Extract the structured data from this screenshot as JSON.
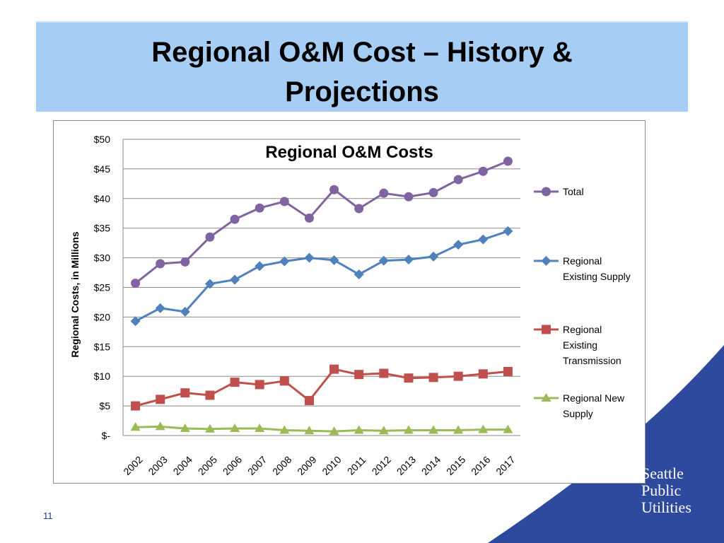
{
  "slide": {
    "title_line1": "Regional O&M Cost – History &",
    "title_line2": "Projections",
    "page_number": "11"
  },
  "logo": {
    "line1": "Seattle",
    "line2": "Public",
    "line3": "Utilities"
  },
  "colors": {
    "title_band": "#a6cef5",
    "swoosh": "#2e4a9e",
    "total": "#8064a2",
    "existing_supply": "#4f81bd",
    "existing_transmission": "#c0504d",
    "new_supply": "#9bbb59"
  },
  "chart_data": {
    "type": "line",
    "title": "Regional O&M Costs",
    "ylabel": "Regional Costs, in Millions",
    "xlabel": "",
    "ylim": [
      0,
      50
    ],
    "y_ticks": [
      0,
      5,
      10,
      15,
      20,
      25,
      30,
      35,
      40,
      45,
      50
    ],
    "y_tick_labels": [
      "$-",
      "$5",
      "$10",
      "$15",
      "$20",
      "$25",
      "$30",
      "$35",
      "$40",
      "$45",
      "$50"
    ],
    "grid": true,
    "legend_position": "right",
    "categories": [
      "2002",
      "2003",
      "2004",
      "2005",
      "2006",
      "2007",
      "2008",
      "2009",
      "2010",
      "2011",
      "2012",
      "2013",
      "2014",
      "2015",
      "2016",
      "2017"
    ],
    "series": [
      {
        "name": "Total",
        "legend_lines": [
          "Total"
        ],
        "color": "#8064a2",
        "marker": "circle",
        "values": [
          25.7,
          29.0,
          29.3,
          33.5,
          36.5,
          38.4,
          39.5,
          36.7,
          41.5,
          38.3,
          40.9,
          40.3,
          41.0,
          43.2,
          44.6,
          46.3
        ]
      },
      {
        "name": "Regional Existing Supply",
        "legend_lines": [
          "Regional",
          "Existing Supply"
        ],
        "color": "#4f81bd",
        "marker": "diamond",
        "values": [
          19.3,
          21.5,
          20.9,
          25.6,
          26.3,
          28.6,
          29.4,
          30.0,
          29.6,
          27.2,
          29.5,
          29.7,
          30.2,
          32.2,
          33.1,
          34.5
        ]
      },
      {
        "name": "Regional Existing Transmission",
        "legend_lines": [
          "Regional",
          "Existing",
          "Transmission"
        ],
        "color": "#c0504d",
        "marker": "square",
        "values": [
          5.0,
          6.1,
          7.2,
          6.8,
          9.0,
          8.6,
          9.2,
          5.9,
          11.2,
          10.3,
          10.5,
          9.7,
          9.8,
          10.0,
          10.4,
          10.8
        ]
      },
      {
        "name": "Regional New Supply",
        "legend_lines": [
          "Regional New",
          "Supply"
        ],
        "color": "#9bbb59",
        "marker": "triangle",
        "values": [
          1.4,
          1.5,
          1.2,
          1.1,
          1.2,
          1.2,
          0.9,
          0.8,
          0.7,
          0.9,
          0.8,
          0.9,
          0.9,
          0.9,
          1.0,
          1.0
        ]
      }
    ]
  }
}
